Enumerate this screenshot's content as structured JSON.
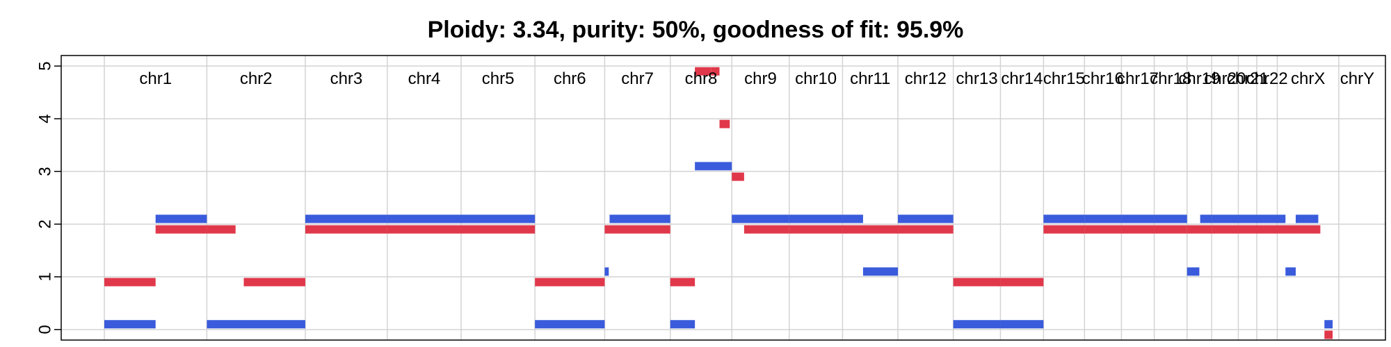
{
  "chart_data": {
    "type": "segments",
    "title": "Ploidy: 3.34, purity: 50%, goodness of fit: 95.9%",
    "xlabel": "",
    "ylabel": "",
    "ylim": [
      -0.2,
      5.2
    ],
    "xlim": [
      0,
      3100
    ],
    "yticks": [
      0,
      1,
      2,
      3,
      4,
      5
    ],
    "grid": true,
    "colors": {
      "major": "#3A5BDB",
      "minor": "#E0384A",
      "grid": "#d3d3d3"
    },
    "chromosomes": [
      {
        "name": "chr1",
        "start": 0,
        "end": 250
      },
      {
        "name": "chr2",
        "start": 250,
        "end": 490
      },
      {
        "name": "chr3",
        "start": 490,
        "end": 690
      },
      {
        "name": "chr4",
        "start": 690,
        "end": 870
      },
      {
        "name": "chr5",
        "start": 870,
        "end": 1050
      },
      {
        "name": "chr6",
        "start": 1050,
        "end": 1220
      },
      {
        "name": "chr7",
        "start": 1220,
        "end": 1380
      },
      {
        "name": "chr8",
        "start": 1380,
        "end": 1530
      },
      {
        "name": "chr9",
        "start": 1530,
        "end": 1670
      },
      {
        "name": "chr10",
        "start": 1670,
        "end": 1800
      },
      {
        "name": "chr11",
        "start": 1800,
        "end": 1935
      },
      {
        "name": "chr12",
        "start": 1935,
        "end": 2070
      },
      {
        "name": "chr13",
        "start": 2070,
        "end": 2185
      },
      {
        "name": "chr14",
        "start": 2185,
        "end": 2290
      },
      {
        "name": "chr15",
        "start": 2290,
        "end": 2390
      },
      {
        "name": "chr16",
        "start": 2390,
        "end": 2480
      },
      {
        "name": "chr17",
        "start": 2480,
        "end": 2560
      },
      {
        "name": "chr18",
        "start": 2560,
        "end": 2640
      },
      {
        "name": "chr19",
        "start": 2640,
        "end": 2700
      },
      {
        "name": "chr20",
        "start": 2700,
        "end": 2765
      },
      {
        "name": "chr21",
        "start": 2765,
        "end": 2810
      },
      {
        "name": "chr22",
        "start": 2810,
        "end": 2860
      },
      {
        "name": "chrX",
        "start": 2860,
        "end": 3010
      },
      {
        "name": "chrY",
        "start": 3010,
        "end": 3100
      }
    ],
    "series": [
      {
        "color": "#3A5BDB",
        "segments": [
          [
            0,
            125,
            0.1
          ],
          [
            125,
            250,
            2.1
          ],
          [
            250,
            340,
            0.1
          ],
          [
            340,
            490,
            0.1
          ],
          [
            490,
            690,
            2.1
          ],
          [
            690,
            870,
            2.1
          ],
          [
            870,
            1050,
            2.1
          ],
          [
            1050,
            1220,
            0.1
          ],
          [
            1220,
            1230,
            1.1
          ],
          [
            1232,
            1380,
            2.1
          ],
          [
            1380,
            1440,
            0.1
          ],
          [
            1440,
            1530,
            3.1
          ],
          [
            1530,
            1670,
            2.1
          ],
          [
            1670,
            1800,
            2.1
          ],
          [
            1800,
            1850,
            2.1
          ],
          [
            1850,
            1935,
            1.1
          ],
          [
            1935,
            2070,
            2.1
          ],
          [
            2070,
            2185,
            0.1
          ],
          [
            2185,
            2290,
            0.1
          ],
          [
            2290,
            2390,
            2.1
          ],
          [
            2390,
            2480,
            2.1
          ],
          [
            2480,
            2560,
            2.1
          ],
          [
            2560,
            2640,
            2.1
          ],
          [
            2640,
            2670,
            1.1
          ],
          [
            2672,
            2700,
            2.1
          ],
          [
            2700,
            2765,
            2.1
          ],
          [
            2765,
            2810,
            2.1
          ],
          [
            2810,
            2860,
            2.1
          ],
          [
            2860,
            2880,
            2.1
          ],
          [
            2880,
            2905,
            1.1
          ],
          [
            2905,
            2960,
            2.1
          ],
          [
            2975,
            2995,
            0.1
          ]
        ]
      },
      {
        "color": "#E0384A",
        "segments": [
          [
            0,
            125,
            0.9
          ],
          [
            125,
            250,
            1.9
          ],
          [
            250,
            320,
            1.9
          ],
          [
            340,
            490,
            0.9
          ],
          [
            490,
            690,
            1.9
          ],
          [
            690,
            870,
            1.9
          ],
          [
            870,
            1050,
            1.9
          ],
          [
            1050,
            1220,
            0.9
          ],
          [
            1220,
            1380,
            1.9
          ],
          [
            1380,
            1440,
            0.9
          ],
          [
            1440,
            1480,
            4.9
          ],
          [
            1480,
            1500,
            4.9
          ],
          [
            1500,
            1525,
            3.9
          ],
          [
            1530,
            1560,
            2.9
          ],
          [
            1560,
            1670,
            1.9
          ],
          [
            1670,
            1800,
            1.9
          ],
          [
            1800,
            1935,
            1.9
          ],
          [
            1935,
            2070,
            1.9
          ],
          [
            2070,
            2185,
            0.9
          ],
          [
            2185,
            2290,
            0.9
          ],
          [
            2290,
            2390,
            1.9
          ],
          [
            2390,
            2480,
            1.9
          ],
          [
            2480,
            2560,
            1.9
          ],
          [
            2560,
            2640,
            1.9
          ],
          [
            2640,
            2700,
            1.9
          ],
          [
            2700,
            2765,
            1.9
          ],
          [
            2765,
            2810,
            1.9
          ],
          [
            2810,
            2860,
            1.9
          ],
          [
            2860,
            2965,
            1.9
          ],
          [
            2975,
            2995,
            -0.1
          ]
        ]
      }
    ]
  }
}
